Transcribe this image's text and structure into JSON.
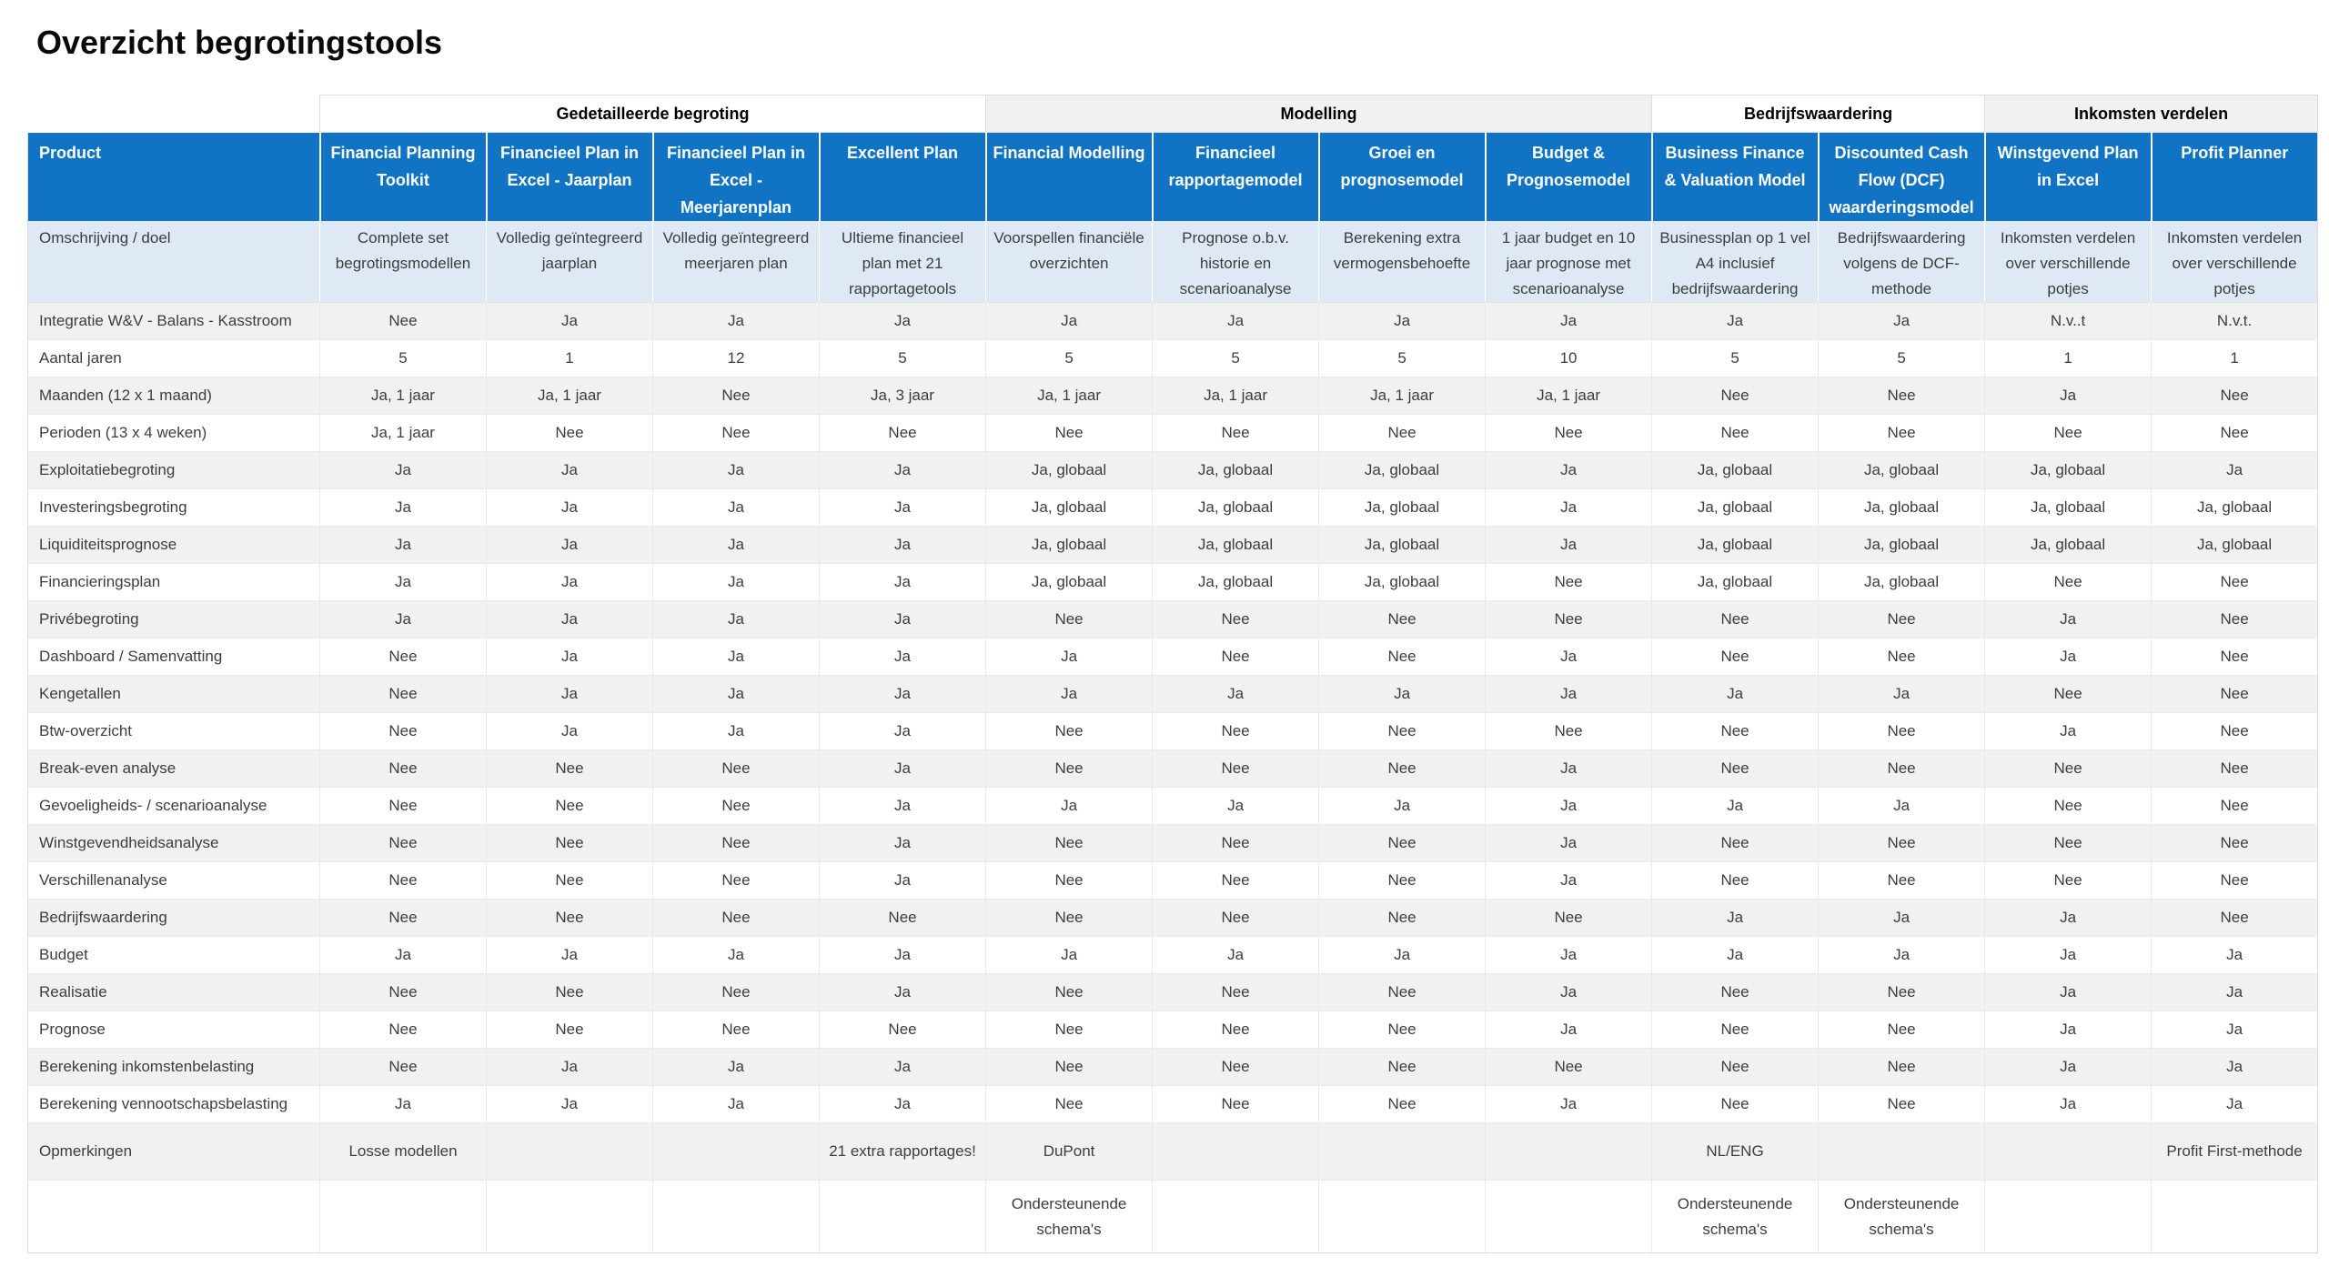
{
  "page": {
    "title": "Overzicht begrotingstools"
  },
  "colors": {
    "header_blue": "#1173c3",
    "description_row_blue": "#dee9f5",
    "stripe_gray": "#f1f1f1",
    "border_gray": "#dcdcdc",
    "header_text": "#ffffff",
    "body_text": "#3d3d3d"
  },
  "table": {
    "corner_label": "Product",
    "groups": [
      {
        "label": "Gedetailleerde begroting",
        "span": 4,
        "shaded": false
      },
      {
        "label": "Modelling",
        "span": 4,
        "shaded": true
      },
      {
        "label": "Bedrijfswaardering",
        "span": 2,
        "shaded": false
      },
      {
        "label": "Inkomsten verdelen",
        "span": 2,
        "shaded": true
      }
    ],
    "columns": [
      "Financial Planning Toolkit",
      "Financieel Plan in Excel - Jaarplan",
      "Financieel Plan in Excel - Meerjarenplan",
      "Excellent Plan",
      "Financial Modelling",
      "Financieel rapportagemodel",
      "Groei en prognosemodel",
      "Budget & Prognosemodel",
      "Business Finance & Valuation Model",
      "Discounted Cash Flow (DCF) waarderingsmodel",
      "Winstgevend Plan in Excel",
      "Profit Planner"
    ],
    "description_row": {
      "label": "Omschrijving / doel",
      "cells": [
        "Complete set begrotingsmodellen",
        "Volledig geïntegreerd jaarplan",
        "Volledig geïntegreerd meerjaren plan",
        "Ultieme financieel plan met 21 rapportagetools",
        "Voorspellen financiële overzichten",
        "Prognose o.b.v. historie en scenarioanalyse",
        "Berekening extra vermogensbehoefte",
        "1 jaar budget en 10 jaar prognose met scenarioanalyse",
        "Businessplan op 1 vel A4 inclusief bedrijfswaardering",
        "Bedrijfswaardering volgens de DCF-methode",
        "Inkomsten verdelen over verschillende potjes",
        "Inkomsten verdelen over verschillende potjes"
      ]
    },
    "rows": [
      {
        "label": "Integratie W&V - Balans - Kasstroom",
        "cells": [
          "Nee",
          "Ja",
          "Ja",
          "Ja",
          "Ja",
          "Ja",
          "Ja",
          "Ja",
          "Ja",
          "Ja",
          "N.v..t",
          "N.v.t."
        ]
      },
      {
        "label": "Aantal jaren",
        "cells": [
          "5",
          "1",
          "12",
          "5",
          "5",
          "5",
          "5",
          "10",
          "5",
          "5",
          "1",
          "1"
        ]
      },
      {
        "label": "Maanden (12 x 1 maand)",
        "cells": [
          "Ja, 1 jaar",
          "Ja, 1 jaar",
          "Nee",
          "Ja, 3 jaar",
          "Ja, 1 jaar",
          "Ja, 1 jaar",
          "Ja, 1 jaar",
          "Ja, 1 jaar",
          "Nee",
          "Nee",
          "Ja",
          "Nee"
        ]
      },
      {
        "label": "Perioden (13 x 4 weken)",
        "cells": [
          "Ja, 1 jaar",
          "Nee",
          "Nee",
          "Nee",
          "Nee",
          "Nee",
          "Nee",
          "Nee",
          "Nee",
          "Nee",
          "Nee",
          "Nee"
        ]
      },
      {
        "label": "Exploitatiebegroting",
        "cells": [
          "Ja",
          "Ja",
          "Ja",
          "Ja",
          "Ja, globaal",
          "Ja, globaal",
          "Ja, globaal",
          "Ja",
          "Ja, globaal",
          "Ja, globaal",
          "Ja, globaal",
          "Ja"
        ]
      },
      {
        "label": "Investeringsbegroting",
        "cells": [
          "Ja",
          "Ja",
          "Ja",
          "Ja",
          "Ja, globaal",
          "Ja, globaal",
          "Ja, globaal",
          "Ja",
          "Ja, globaal",
          "Ja, globaal",
          "Ja, globaal",
          "Ja, globaal"
        ]
      },
      {
        "label": "Liquiditeitsprognose",
        "cells": [
          "Ja",
          "Ja",
          "Ja",
          "Ja",
          "Ja, globaal",
          "Ja, globaal",
          "Ja, globaal",
          "Ja",
          "Ja, globaal",
          "Ja, globaal",
          "Ja, globaal",
          "Ja, globaal"
        ]
      },
      {
        "label": "Financieringsplan",
        "cells": [
          "Ja",
          "Ja",
          "Ja",
          "Ja",
          "Ja, globaal",
          "Ja, globaal",
          "Ja, globaal",
          "Nee",
          "Ja, globaal",
          "Ja, globaal",
          "Nee",
          "Nee"
        ]
      },
      {
        "label": "Privébegroting",
        "cells": [
          "Ja",
          "Ja",
          "Ja",
          "Ja",
          "Nee",
          "Nee",
          "Nee",
          "Nee",
          "Nee",
          "Nee",
          "Ja",
          "Nee"
        ]
      },
      {
        "label": "Dashboard / Samenvatting",
        "cells": [
          "Nee",
          "Ja",
          "Ja",
          "Ja",
          "Ja",
          "Nee",
          "Nee",
          "Ja",
          "Nee",
          "Nee",
          "Ja",
          "Nee"
        ]
      },
      {
        "label": "Kengetallen",
        "cells": [
          "Nee",
          "Ja",
          "Ja",
          "Ja",
          "Ja",
          "Ja",
          "Ja",
          "Ja",
          "Ja",
          "Ja",
          "Nee",
          "Nee"
        ]
      },
      {
        "label": "Btw-overzicht",
        "cells": [
          "Nee",
          "Ja",
          "Ja",
          "Ja",
          "Nee",
          "Nee",
          "Nee",
          "Nee",
          "Nee",
          "Nee",
          "Ja",
          "Nee"
        ]
      },
      {
        "label": "Break-even analyse",
        "cells": [
          "Nee",
          "Nee",
          "Nee",
          "Ja",
          "Nee",
          "Nee",
          "Nee",
          "Ja",
          "Nee",
          "Nee",
          "Nee",
          "Nee"
        ]
      },
      {
        "label": "Gevoeligheids- / scenarioanalyse",
        "cells": [
          "Nee",
          "Nee",
          "Nee",
          "Ja",
          "Ja",
          "Ja",
          "Ja",
          "Ja",
          "Ja",
          "Ja",
          "Nee",
          "Nee"
        ]
      },
      {
        "label": "Winstgevendheidsanalyse",
        "cells": [
          "Nee",
          "Nee",
          "Nee",
          "Ja",
          "Nee",
          "Nee",
          "Nee",
          "Ja",
          "Nee",
          "Nee",
          "Nee",
          "Nee"
        ]
      },
      {
        "label": "Verschillenanalyse",
        "cells": [
          "Nee",
          "Nee",
          "Nee",
          "Ja",
          "Nee",
          "Nee",
          "Nee",
          "Ja",
          "Nee",
          "Nee",
          "Nee",
          "Nee"
        ]
      },
      {
        "label": "Bedrijfswaardering",
        "cells": [
          "Nee",
          "Nee",
          "Nee",
          "Nee",
          "Nee",
          "Nee",
          "Nee",
          "Nee",
          "Ja",
          "Ja",
          "Ja",
          "Nee"
        ]
      },
      {
        "label": "Budget",
        "cells": [
          "Ja",
          "Ja",
          "Ja",
          "Ja",
          "Ja",
          "Ja",
          "Ja",
          "Ja",
          "Ja",
          "Ja",
          "Ja",
          "Ja"
        ]
      },
      {
        "label": "Realisatie",
        "cells": [
          "Nee",
          "Nee",
          "Nee",
          "Ja",
          "Nee",
          "Nee",
          "Nee",
          "Ja",
          "Nee",
          "Nee",
          "Ja",
          "Ja"
        ]
      },
      {
        "label": "Prognose",
        "cells": [
          "Nee",
          "Nee",
          "Nee",
          "Nee",
          "Nee",
          "Nee",
          "Nee",
          "Ja",
          "Nee",
          "Nee",
          "Ja",
          "Ja"
        ]
      },
      {
        "label": "Berekening inkomstenbelasting",
        "cells": [
          "Nee",
          "Ja",
          "Ja",
          "Ja",
          "Nee",
          "Nee",
          "Nee",
          "Nee",
          "Nee",
          "Nee",
          "Ja",
          "Ja"
        ]
      },
      {
        "label": "Berekening vennootschapsbelasting",
        "cells": [
          "Ja",
          "Ja",
          "Ja",
          "Ja",
          "Nee",
          "Nee",
          "Nee",
          "Ja",
          "Nee",
          "Nee",
          "Ja",
          "Ja"
        ]
      },
      {
        "label": "Opmerkingen",
        "cells": [
          "Losse modellen",
          "",
          "",
          "21 extra rapportages!",
          "DuPont",
          "",
          "",
          "",
          "NL/ENG",
          "",
          "",
          "Profit First-methode"
        ]
      },
      {
        "label": "",
        "cells": [
          "",
          "",
          "",
          "",
          "Ondersteunende schema's",
          "",
          "",
          "",
          "Ondersteunende schema's",
          "Ondersteunende schema's",
          "",
          ""
        ]
      }
    ],
    "layout": {
      "product_col_width": 321,
      "data_col_width": 183
    }
  }
}
